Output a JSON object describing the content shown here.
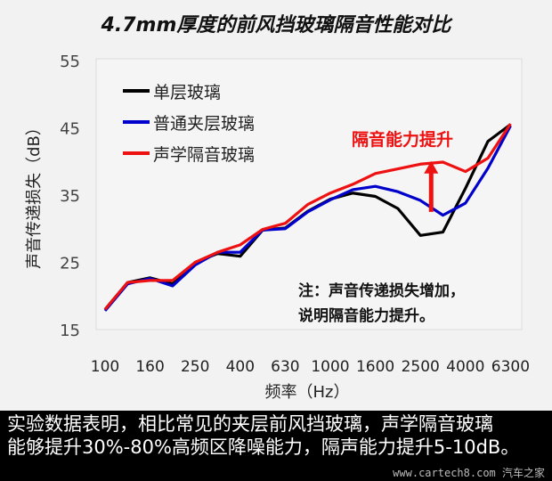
{
  "chart_data": {
    "type": "line",
    "title": "4.7mm厚度的前风挡玻璃隔音性能对比",
    "xlabel": "频率（Hz）",
    "ylabel": "声音传递损失（dB）",
    "x": [
      100,
      125,
      160,
      200,
      250,
      315,
      400,
      500,
      630,
      800,
      1000,
      1250,
      1600,
      2000,
      2500,
      3150,
      4000,
      5000,
      6300
    ],
    "xtick_labels": [
      "100",
      "160",
      "250",
      "400",
      "630",
      "1000",
      "1600",
      "2500",
      "4000",
      "6300"
    ],
    "yticks": [
      15,
      25,
      35,
      45,
      55
    ],
    "ylim": [
      15,
      55
    ],
    "grid": false,
    "legend": "top-left",
    "series": [
      {
        "name": "单层玻璃",
        "color": "#000000",
        "values": [
          18,
          22,
          22.7,
          21.8,
          25,
          26.3,
          25.9,
          29.8,
          30.1,
          32.6,
          34.4,
          35.3,
          34.8,
          33,
          29,
          29.5,
          36,
          43,
          45.5
        ]
      },
      {
        "name": "普通夹层玻璃",
        "color": "#0000cc",
        "values": [
          17.8,
          21.8,
          22.6,
          21.5,
          24.6,
          26.5,
          26.5,
          29.8,
          30,
          32.5,
          34.3,
          35.8,
          36.3,
          35.5,
          34.2,
          32,
          33.8,
          39,
          45.3
        ]
      },
      {
        "name": "声学隔音玻璃",
        "color": "#ee1111",
        "values": [
          18,
          22,
          22.3,
          22.3,
          25,
          26.5,
          27.6,
          29.9,
          30.8,
          33.6,
          35.3,
          36.6,
          38.2,
          38.9,
          39.6,
          39.9,
          38.5,
          40.5,
          45.6
        ]
      }
    ],
    "annotations": {
      "arrow_label": "隔音能力提升",
      "arrow_color": "#ee1111",
      "arrow_from_db": 32.5,
      "arrow_to_db": 39.8,
      "arrow_at_hz": 2800,
      "note_line1": "注：声音传递损失增加，",
      "note_line2": "说明隔音能力提升。"
    }
  },
  "footer": {
    "line1": "实验数据表明，相比常见的夹层前风挡玻璃，声学隔音玻璃",
    "line2": "能够提升30%-80%高频区降噪能力，隔声能力提升5-10dB。",
    "watermark": "www.cartech8.com 汽车之家"
  }
}
